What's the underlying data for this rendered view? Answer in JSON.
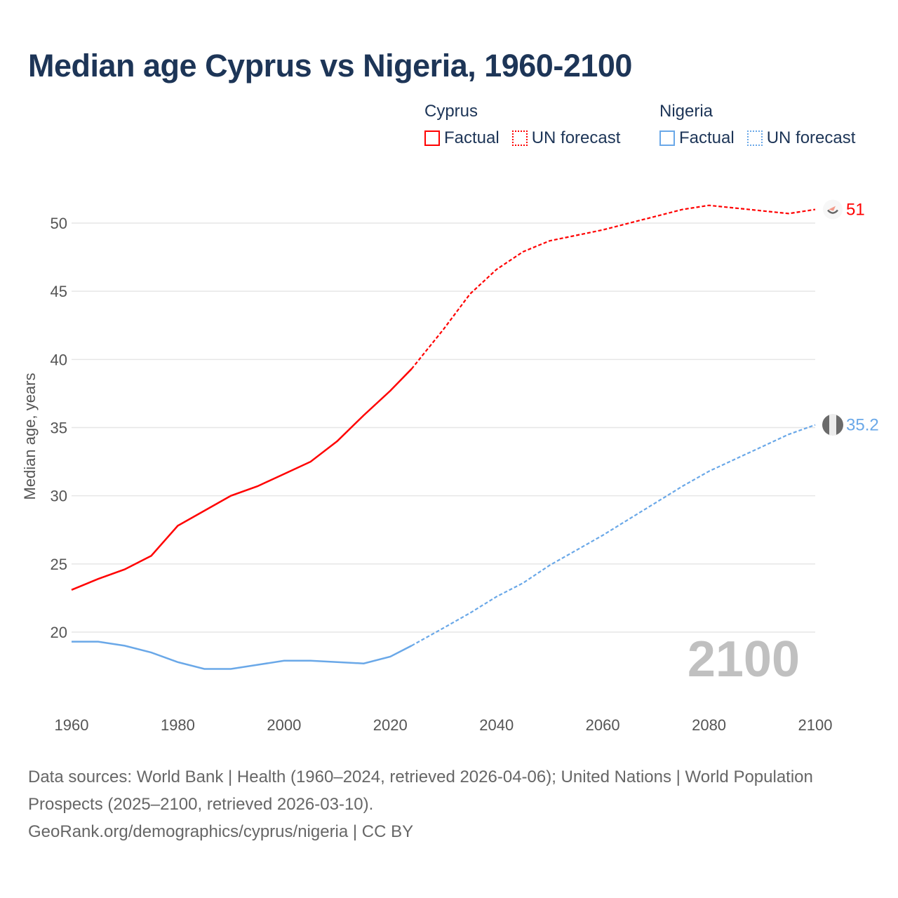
{
  "chart_data": {
    "type": "line",
    "title": "Median age Cyprus vs Nigeria, 1960-2100",
    "ylabel": "Median age, years",
    "xlabel": "",
    "xlim": [
      1960,
      2100
    ],
    "ylim": [
      15,
      52
    ],
    "x_ticks": [
      1960,
      1980,
      2000,
      2020,
      2040,
      2060,
      2080,
      2100
    ],
    "y_ticks": [
      20,
      25,
      30,
      35,
      40,
      45,
      50
    ],
    "grid": true,
    "year_watermark": "2100",
    "legend": {
      "placement": "top-right",
      "groups": [
        {
          "name": "Cyprus",
          "items": [
            "Factual",
            "UN forecast"
          ],
          "color": "#ff0000"
        },
        {
          "name": "Nigeria",
          "items": [
            "Factual",
            "UN forecast"
          ],
          "color": "#6aa8e8"
        }
      ]
    },
    "x": [
      1960,
      1965,
      1970,
      1975,
      1980,
      1985,
      1990,
      1995,
      2000,
      2005,
      2010,
      2015,
      2020,
      2024,
      2030,
      2035,
      2040,
      2045,
      2050,
      2055,
      2060,
      2065,
      2070,
      2075,
      2080,
      2085,
      2090,
      2095,
      2100
    ],
    "factual_until": 2024,
    "series": [
      {
        "name": "Cyprus",
        "color": "#ff0000",
        "end_label": "51",
        "values": [
          23.1,
          23.9,
          24.6,
          25.6,
          27.8,
          28.9,
          30.0,
          30.7,
          31.6,
          32.5,
          34.0,
          35.9,
          37.7,
          39.3,
          42.2,
          44.8,
          46.6,
          47.9,
          48.7,
          49.1,
          49.5,
          50.0,
          50.5,
          51.0,
          51.3,
          51.1,
          50.9,
          50.7,
          51.0
        ]
      },
      {
        "name": "Nigeria",
        "color": "#6aa8e8",
        "end_label": "35.2",
        "values": [
          19.3,
          19.3,
          19.0,
          18.5,
          17.8,
          17.3,
          17.3,
          17.6,
          17.9,
          17.9,
          17.8,
          17.7,
          18.2,
          19.0,
          20.3,
          21.4,
          22.6,
          23.6,
          24.9,
          26.0,
          27.1,
          28.3,
          29.5,
          30.7,
          31.8,
          32.7,
          33.6,
          34.5,
          35.2
        ]
      }
    ]
  },
  "footer": {
    "sources": "Data sources: World Bank | Health (1960–2024, retrieved 2026-04-06); United Nations | World Population Prospects (2025–2100, retrieved 2026-03-10).",
    "link": "GeoRank.org/demographics/cyprus/nigeria | CC BY"
  }
}
